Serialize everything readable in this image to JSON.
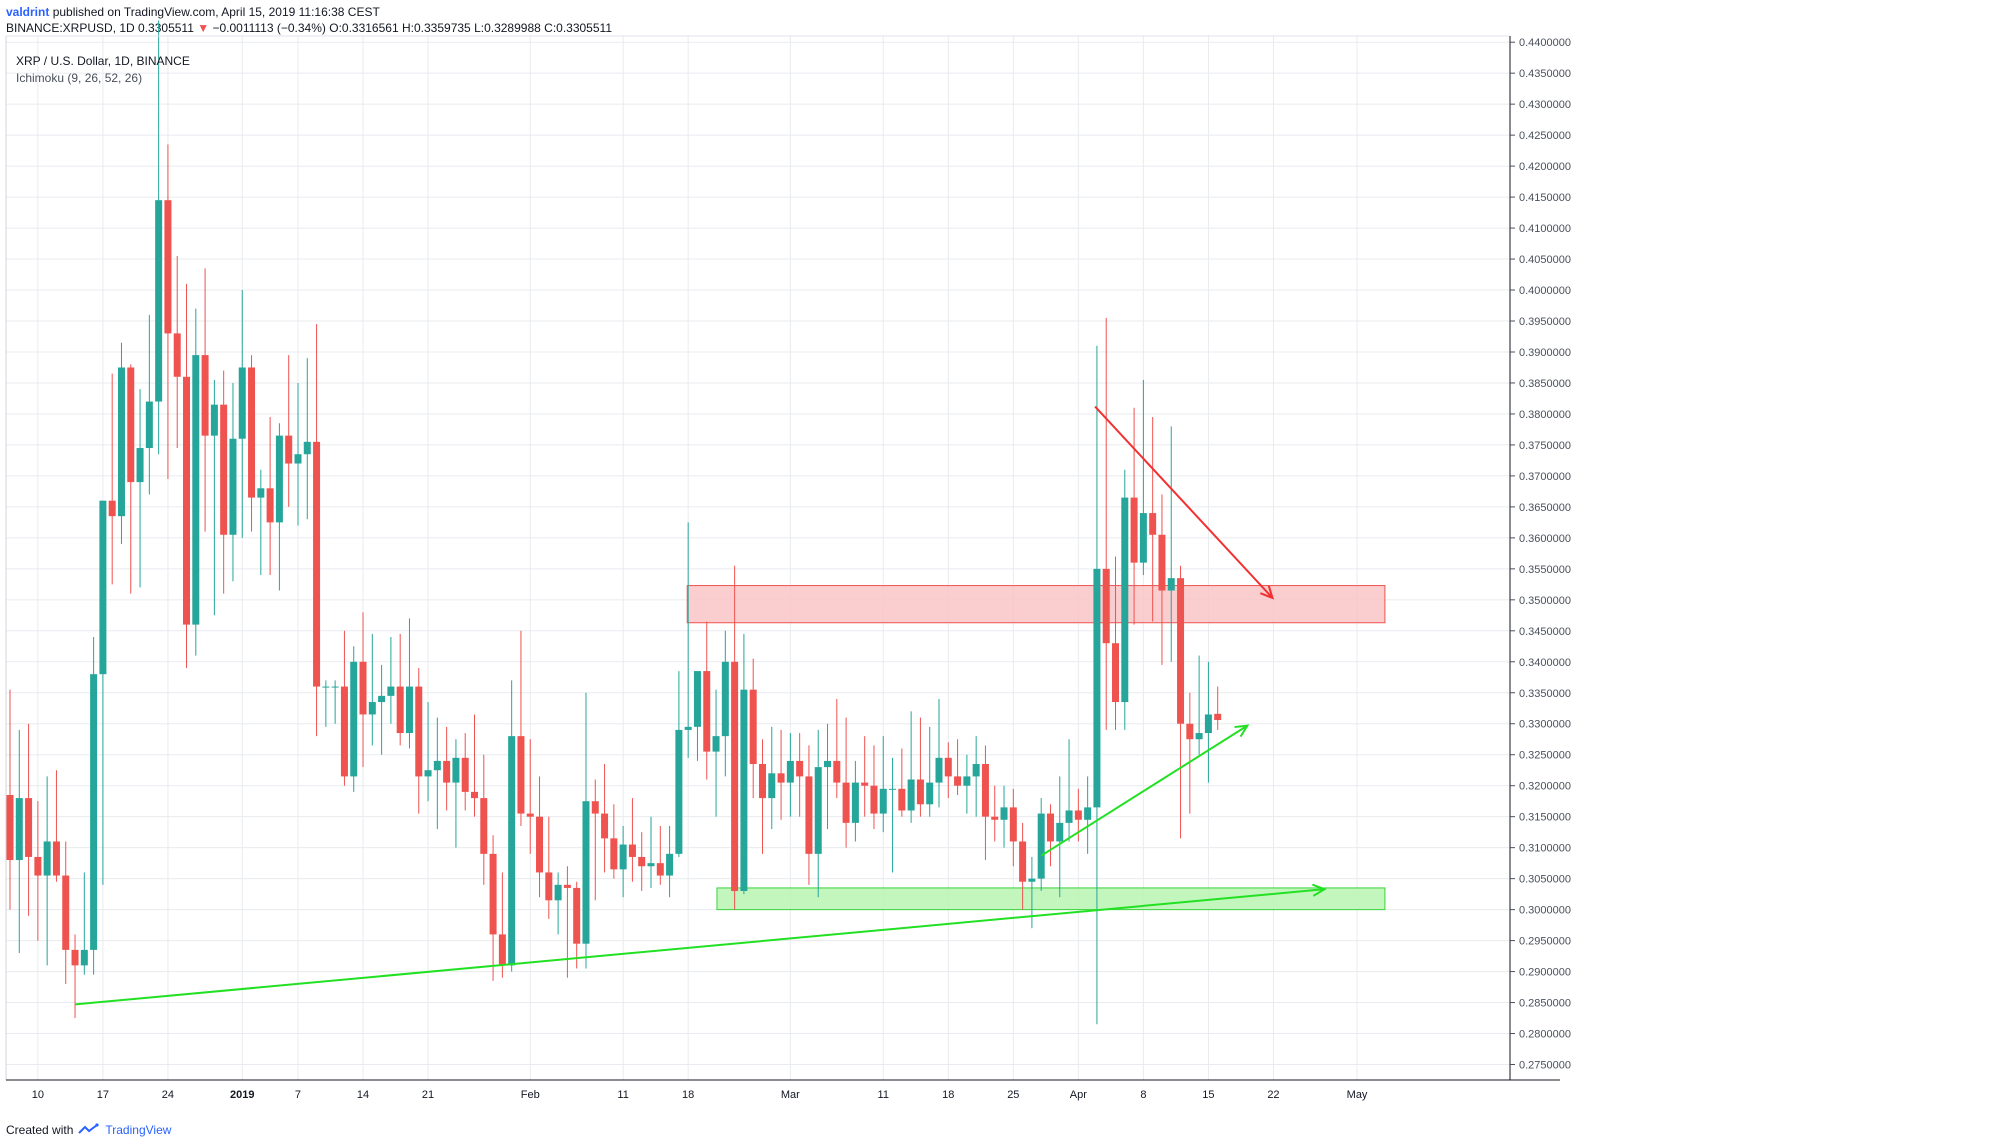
{
  "header": {
    "author": "valdrint",
    "published": "published on TradingView.com, April 15, 2019 11:16:38 CEST",
    "symbol": "BINANCE:XRPUSD, 1D",
    "last": "0.3305511",
    "change": "−0.0011113 (−0.34%)",
    "open_label": "O:",
    "open": "0.3316561",
    "high_label": "H:",
    "high": "0.3359735",
    "low_label": "L:",
    "low": "0.3289988",
    "close_label": "C:",
    "close": "0.3305511"
  },
  "legend": {
    "title": "XRP / U.S. Dollar, 1D, BINANCE",
    "indicator": "Ichimoku (9, 26, 52, 26)"
  },
  "footer": {
    "created_with": "Created with",
    "brand": "TradingView"
  },
  "colors": {
    "up": "#26a69a",
    "down": "#ef5350",
    "grid": "#e8ebef",
    "axis_text": "#4a4f5a",
    "green_line": "#22e022",
    "red_arrow": "#f23030",
    "resistance_fill": "#f9c4c7",
    "support_fill": "#b9f5b2"
  },
  "chart_data": {
    "type": "candlestick",
    "interval": "1D",
    "ylim": [
      0.2725,
      0.441
    ],
    "y_ticks": [
      "0.2750000",
      "0.2800000",
      "0.2850000",
      "0.2900000",
      "0.2950000",
      "0.3000000",
      "0.3050000",
      "0.3100000",
      "0.3150000",
      "0.3200000",
      "0.3250000",
      "0.3300000",
      "0.3350000",
      "0.3400000",
      "0.3450000",
      "0.3500000",
      "0.3550000",
      "0.3600000",
      "0.3650000",
      "0.3700000",
      "0.3750000",
      "0.3800000",
      "0.3850000",
      "0.3900000",
      "0.3950000",
      "0.4000000",
      "0.4050000",
      "0.4100000",
      "0.4150000",
      "0.4200000",
      "0.4250000",
      "0.4300000",
      "0.4350000",
      "0.4400000"
    ],
    "x_ticks": [
      {
        "label": "10",
        "day": 3
      },
      {
        "label": "17",
        "day": 10
      },
      {
        "label": "24",
        "day": 17
      },
      {
        "label": "2019",
        "day": 25,
        "bold": true
      },
      {
        "label": "7",
        "day": 31
      },
      {
        "label": "14",
        "day": 38
      },
      {
        "label": "21",
        "day": 45
      },
      {
        "label": "Feb",
        "day": 56
      },
      {
        "label": "11",
        "day": 66
      },
      {
        "label": "18",
        "day": 73
      },
      {
        "label": "Mar",
        "day": 84
      },
      {
        "label": "11",
        "day": 94
      },
      {
        "label": "18",
        "day": 101
      },
      {
        "label": "25",
        "day": 108
      },
      {
        "label": "Apr",
        "day": 115
      },
      {
        "label": "8",
        "day": 122
      },
      {
        "label": "15",
        "day": 129
      },
      {
        "label": "22",
        "day": 136
      },
      {
        "label": "May",
        "day": 145
      }
    ],
    "candles": [
      [
        0.3185,
        0.3355,
        0.3,
        0.308
      ],
      [
        0.308,
        0.329,
        0.293,
        0.318
      ],
      [
        0.318,
        0.33,
        0.299,
        0.3085
      ],
      [
        0.3085,
        0.3175,
        0.295,
        0.3055
      ],
      [
        0.3055,
        0.3215,
        0.291,
        0.311
      ],
      [
        0.311,
        0.3225,
        0.3045,
        0.3055
      ],
      [
        0.3055,
        0.311,
        0.288,
        0.2935
      ],
      [
        0.2935,
        0.296,
        0.2825,
        0.291
      ],
      [
        0.291,
        0.306,
        0.2895,
        0.2935
      ],
      [
        0.2935,
        0.344,
        0.2895,
        0.338
      ],
      [
        0.338,
        0.366,
        0.304,
        0.366
      ],
      [
        0.366,
        0.3865,
        0.3525,
        0.3635
      ],
      [
        0.3635,
        0.3915,
        0.359,
        0.3875
      ],
      [
        0.3875,
        0.388,
        0.351,
        0.369
      ],
      [
        0.369,
        0.384,
        0.352,
        0.3745
      ],
      [
        0.3745,
        0.396,
        0.367,
        0.382
      ],
      [
        0.382,
        0.4435,
        0.3735,
        0.4145
      ],
      [
        0.4145,
        0.4235,
        0.3695,
        0.393
      ],
      [
        0.393,
        0.4055,
        0.3745,
        0.386
      ],
      [
        0.386,
        0.401,
        0.339,
        0.346
      ],
      [
        0.346,
        0.397,
        0.341,
        0.3895
      ],
      [
        0.3895,
        0.4035,
        0.361,
        0.3765
      ],
      [
        0.3765,
        0.3855,
        0.3475,
        0.3815
      ],
      [
        0.3815,
        0.387,
        0.351,
        0.3605
      ],
      [
        0.3605,
        0.385,
        0.353,
        0.376
      ],
      [
        0.376,
        0.4,
        0.36,
        0.3875
      ],
      [
        0.3875,
        0.3895,
        0.361,
        0.3665
      ],
      [
        0.3665,
        0.371,
        0.354,
        0.368
      ],
      [
        0.368,
        0.3795,
        0.354,
        0.3625
      ],
      [
        0.3625,
        0.3785,
        0.3515,
        0.3765
      ],
      [
        0.3765,
        0.3895,
        0.365,
        0.372
      ],
      [
        0.372,
        0.385,
        0.362,
        0.3735
      ],
      [
        0.3735,
        0.389,
        0.363,
        0.3755
      ],
      [
        0.3755,
        0.3945,
        0.328,
        0.336
      ],
      [
        0.336,
        0.337,
        0.3295,
        0.336
      ],
      [
        0.336,
        0.337,
        0.33,
        0.336
      ],
      [
        0.336,
        0.345,
        0.32,
        0.3215
      ],
      [
        0.3215,
        0.3425,
        0.319,
        0.34
      ],
      [
        0.34,
        0.348,
        0.323,
        0.3315
      ],
      [
        0.3315,
        0.3445,
        0.3265,
        0.3335
      ],
      [
        0.3335,
        0.3395,
        0.325,
        0.3345
      ],
      [
        0.3345,
        0.344,
        0.33,
        0.336
      ],
      [
        0.336,
        0.3445,
        0.3265,
        0.3285
      ],
      [
        0.3285,
        0.347,
        0.326,
        0.336
      ],
      [
        0.336,
        0.339,
        0.3155,
        0.3215
      ],
      [
        0.3215,
        0.3335,
        0.3175,
        0.3225
      ],
      [
        0.3225,
        0.331,
        0.313,
        0.324
      ],
      [
        0.324,
        0.3295,
        0.316,
        0.3205
      ],
      [
        0.3205,
        0.3275,
        0.31,
        0.3245
      ],
      [
        0.3245,
        0.3285,
        0.316,
        0.319
      ],
      [
        0.319,
        0.3315,
        0.315,
        0.318
      ],
      [
        0.318,
        0.325,
        0.304,
        0.309
      ],
      [
        0.309,
        0.312,
        0.2885,
        0.296
      ],
      [
        0.296,
        0.306,
        0.289,
        0.291
      ],
      [
        0.291,
        0.337,
        0.29,
        0.328
      ],
      [
        0.328,
        0.345,
        0.3135,
        0.3155
      ],
      [
        0.3155,
        0.3275,
        0.309,
        0.315
      ],
      [
        0.315,
        0.3215,
        0.302,
        0.306
      ],
      [
        0.306,
        0.315,
        0.2985,
        0.3015
      ],
      [
        0.3015,
        0.306,
        0.296,
        0.304
      ],
      [
        0.304,
        0.307,
        0.289,
        0.3035
      ],
      [
        0.3035,
        0.3045,
        0.2905,
        0.2945
      ],
      [
        0.2945,
        0.335,
        0.2905,
        0.3175
      ],
      [
        0.3175,
        0.321,
        0.3015,
        0.3155
      ],
      [
        0.3155,
        0.3235,
        0.306,
        0.3115
      ],
      [
        0.3115,
        0.317,
        0.305,
        0.3065
      ],
      [
        0.3065,
        0.3135,
        0.302,
        0.3105
      ],
      [
        0.3105,
        0.318,
        0.3045,
        0.3085
      ],
      [
        0.3085,
        0.3125,
        0.303,
        0.307
      ],
      [
        0.307,
        0.315,
        0.3035,
        0.3075
      ],
      [
        0.3075,
        0.3135,
        0.304,
        0.3055
      ],
      [
        0.3055,
        0.3135,
        0.302,
        0.309
      ],
      [
        0.309,
        0.3385,
        0.3085,
        0.329
      ],
      [
        0.329,
        0.3625,
        0.3245,
        0.3295
      ],
      [
        0.3295,
        0.338,
        0.324,
        0.3385
      ],
      [
        0.3385,
        0.3465,
        0.321,
        0.3255
      ],
      [
        0.3255,
        0.3355,
        0.315,
        0.328
      ],
      [
        0.328,
        0.345,
        0.3215,
        0.34
      ],
      [
        0.34,
        0.3555,
        0.3,
        0.303
      ],
      [
        0.303,
        0.3445,
        0.3025,
        0.3355
      ],
      [
        0.3355,
        0.3405,
        0.318,
        0.3235
      ],
      [
        0.3235,
        0.3275,
        0.309,
        0.318
      ],
      [
        0.318,
        0.3295,
        0.313,
        0.322
      ],
      [
        0.322,
        0.329,
        0.3145,
        0.3205
      ],
      [
        0.3205,
        0.3285,
        0.315,
        0.324
      ],
      [
        0.324,
        0.3285,
        0.315,
        0.3215
      ],
      [
        0.3215,
        0.3265,
        0.304,
        0.309
      ],
      [
        0.309,
        0.329,
        0.302,
        0.323
      ],
      [
        0.323,
        0.33,
        0.313,
        0.324
      ],
      [
        0.324,
        0.334,
        0.318,
        0.3205
      ],
      [
        0.3205,
        0.331,
        0.31,
        0.314
      ],
      [
        0.314,
        0.324,
        0.311,
        0.3205
      ],
      [
        0.3205,
        0.328,
        0.315,
        0.32
      ],
      [
        0.32,
        0.3265,
        0.313,
        0.3155
      ],
      [
        0.3155,
        0.328,
        0.3125,
        0.3195
      ],
      [
        0.3195,
        0.3245,
        0.306,
        0.3195
      ],
      [
        0.3195,
        0.326,
        0.315,
        0.316
      ],
      [
        0.316,
        0.332,
        0.314,
        0.321
      ],
      [
        0.321,
        0.331,
        0.315,
        0.317
      ],
      [
        0.317,
        0.3295,
        0.315,
        0.3205
      ],
      [
        0.3205,
        0.334,
        0.3165,
        0.3245
      ],
      [
        0.3245,
        0.327,
        0.318,
        0.3215
      ],
      [
        0.3215,
        0.3275,
        0.3185,
        0.32
      ],
      [
        0.32,
        0.325,
        0.3155,
        0.3215
      ],
      [
        0.3215,
        0.328,
        0.315,
        0.3235
      ],
      [
        0.3235,
        0.3265,
        0.308,
        0.315
      ],
      [
        0.315,
        0.32,
        0.311,
        0.3145
      ],
      [
        0.3145,
        0.32,
        0.31,
        0.3165
      ],
      [
        0.3165,
        0.3195,
        0.307,
        0.311
      ],
      [
        0.311,
        0.314,
        0.3,
        0.3045
      ],
      [
        0.3045,
        0.3085,
        0.297,
        0.305
      ],
      [
        0.305,
        0.318,
        0.303,
        0.3155
      ],
      [
        0.3155,
        0.317,
        0.307,
        0.311
      ],
      [
        0.311,
        0.3215,
        0.302,
        0.314
      ],
      [
        0.314,
        0.3275,
        0.311,
        0.316
      ],
      [
        0.316,
        0.3195,
        0.311,
        0.3145
      ],
      [
        0.3145,
        0.3215,
        0.309,
        0.3165
      ],
      [
        0.3165,
        0.391,
        0.2815,
        0.355
      ],
      [
        0.355,
        0.3955,
        0.329,
        0.343
      ],
      [
        0.343,
        0.357,
        0.329,
        0.3335
      ],
      [
        0.3335,
        0.371,
        0.329,
        0.3665
      ],
      [
        0.3665,
        0.381,
        0.346,
        0.356
      ],
      [
        0.356,
        0.3855,
        0.354,
        0.364
      ],
      [
        0.364,
        0.3795,
        0.3465,
        0.3605
      ],
      [
        0.3605,
        0.367,
        0.3395,
        0.3515
      ],
      [
        0.3515,
        0.378,
        0.34,
        0.3535
      ],
      [
        0.3535,
        0.3555,
        0.3115,
        0.33
      ],
      [
        0.33,
        0.335,
        0.3155,
        0.3275
      ],
      [
        0.3275,
        0.341,
        0.325,
        0.3285
      ],
      [
        0.3285,
        0.34,
        0.3205,
        0.3315
      ],
      [
        0.3316,
        0.336,
        0.329,
        0.3306
      ]
    ],
    "annotations": {
      "resistance_zone": {
        "day_start": 72.9,
        "day_end": 148,
        "low": 0.3463,
        "high": 0.3523
      },
      "support_zone": {
        "day_start": 76.1,
        "day_end": 148,
        "low": 0.3,
        "high": 0.3035
      },
      "long_trendline": {
        "day_start": 7,
        "value_start": 0.2847,
        "day_end": 141.5,
        "value_end": 0.3033
      },
      "short_trendline": {
        "day_start": 111,
        "value_start": 0.3087,
        "day_end": 133.2,
        "value_end": 0.3297
      },
      "down_arrow": {
        "day_start": 116.8,
        "value_start": 0.3812,
        "day_end": 135.9,
        "value_end": 0.3503
      }
    }
  }
}
